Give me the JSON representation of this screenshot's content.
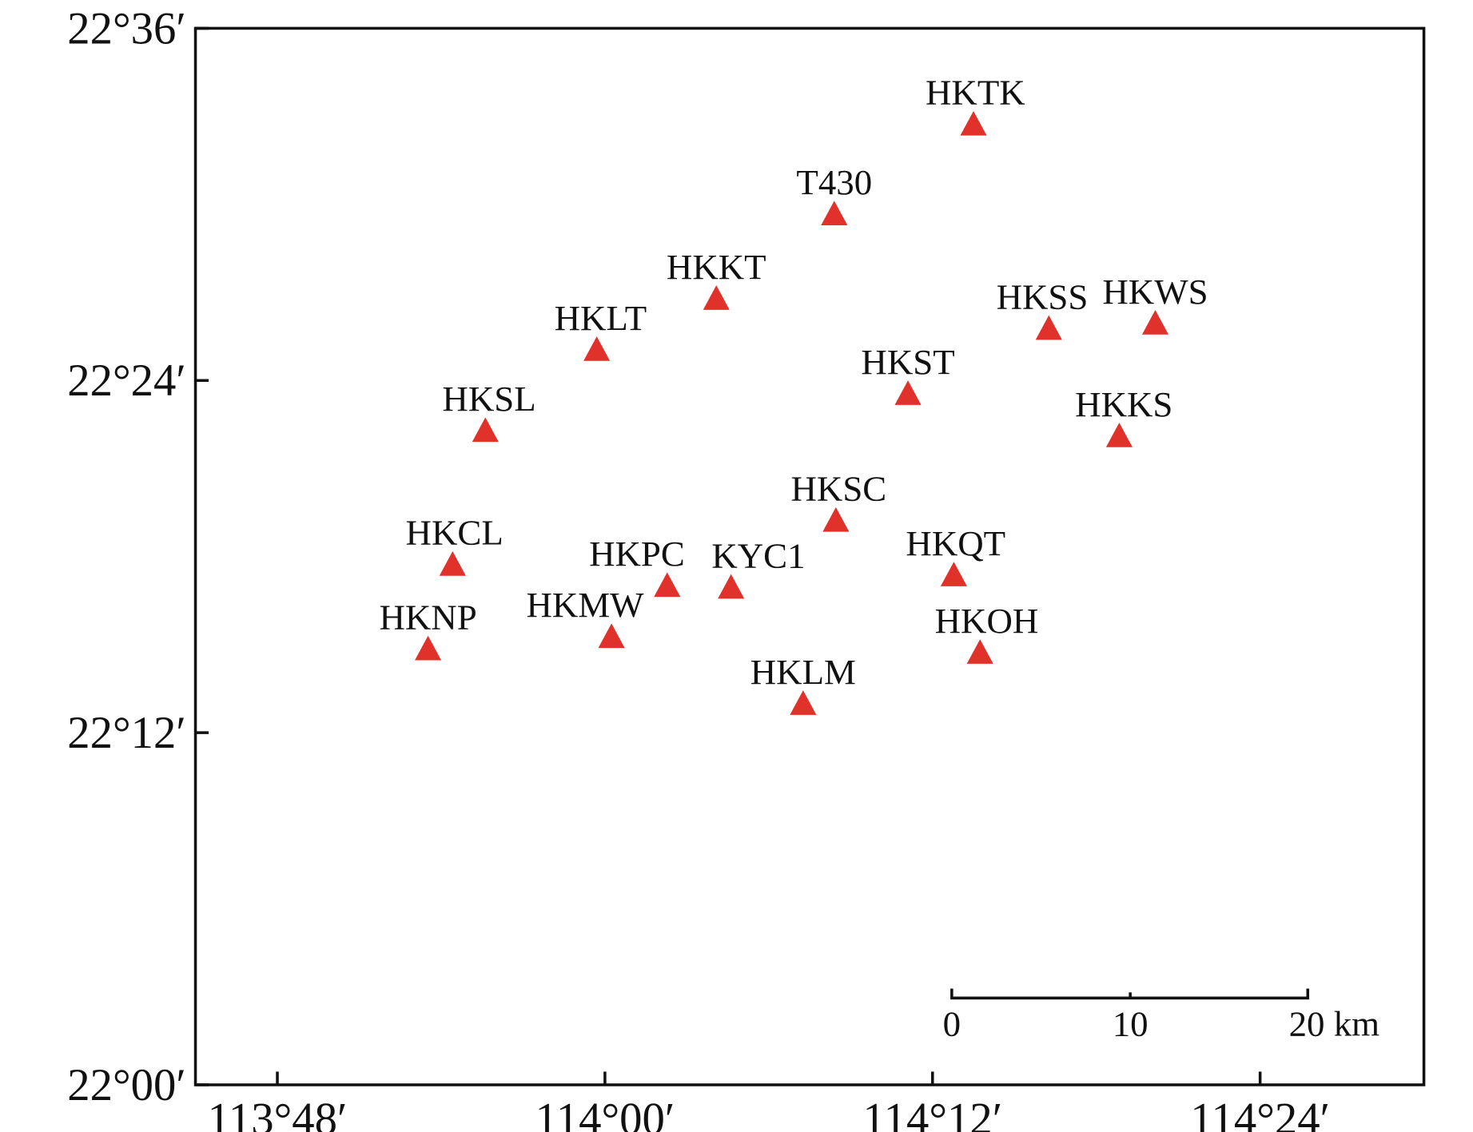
{
  "map": {
    "extent": {
      "lon_min": 113.75,
      "lon_max": 114.5,
      "lat_min": 22.0,
      "lat_max": 22.6
    },
    "marker_color": "#e0322a",
    "x_ticks": [
      {
        "value": 113.8,
        "label": "113°48′"
      },
      {
        "value": 114.0,
        "label": "114°00′"
      },
      {
        "value": 114.2,
        "label": "114°12′"
      },
      {
        "value": 114.4,
        "label": "114°24′"
      }
    ],
    "y_ticks": [
      {
        "value": 22.6,
        "label": "22°36′"
      },
      {
        "value": 22.4,
        "label": "22°24′"
      },
      {
        "value": 22.2,
        "label": "22°12′"
      },
      {
        "value": 22.0,
        "label": "22°00′"
      }
    ],
    "stations": [
      {
        "name": "HKTK",
        "lon": 114.225,
        "lat": 22.545
      },
      {
        "name": "T430",
        "lon": 114.14,
        "lat": 22.494
      },
      {
        "name": "HKKT",
        "lon": 114.068,
        "lat": 22.446
      },
      {
        "name": "HKLT",
        "lon": 113.995,
        "lat": 22.417
      },
      {
        "name": "HKSS",
        "lon": 114.271,
        "lat": 22.429
      },
      {
        "name": "HKWS",
        "lon": 114.336,
        "lat": 22.432
      },
      {
        "name": "HKST",
        "lon": 114.185,
        "lat": 22.392
      },
      {
        "name": "HKSL",
        "lon": 113.927,
        "lat": 22.371
      },
      {
        "name": "HKKS",
        "lon": 114.314,
        "lat": 22.368
      },
      {
        "name": "HKSC",
        "lon": 114.141,
        "lat": 22.32
      },
      {
        "name": "HKCL",
        "lon": 113.907,
        "lat": 22.295
      },
      {
        "name": "HKQT",
        "lon": 114.213,
        "lat": 22.289
      },
      {
        "name": "HKPC",
        "lon": 114.038,
        "lat": 22.283
      },
      {
        "name": "KYC1",
        "lon": 114.077,
        "lat": 22.282
      },
      {
        "name": "HKMW",
        "lon": 114.004,
        "lat": 22.254
      },
      {
        "name": "HKNP",
        "lon": 113.892,
        "lat": 22.247
      },
      {
        "name": "HKOH",
        "lon": 114.229,
        "lat": 22.245
      },
      {
        "name": "HKLM",
        "lon": 114.121,
        "lat": 22.216
      }
    ],
    "scale_bar": {
      "labels": [
        "0",
        "10",
        "20 km"
      ],
      "values_km": [
        0,
        10,
        20
      ]
    }
  }
}
